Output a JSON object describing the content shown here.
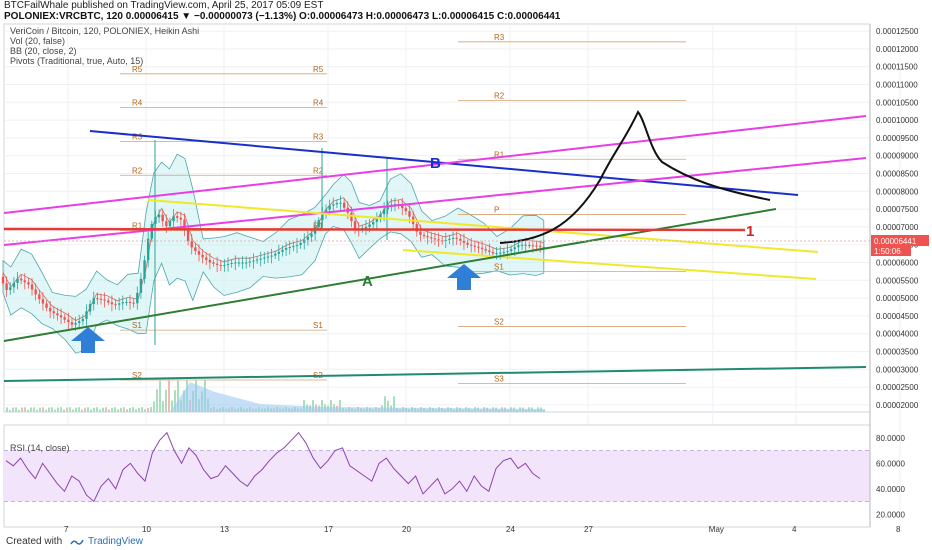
{
  "header": {
    "publisher_line": "BTCFailWhale published on TradingView.com, April 25, 2017 05:09 EST",
    "ohlc_line": "POLONIEX:VRCBTC, 120  0.00006415 ▼ −0.00000073 (−1.13%) O:0.00006473 H:0.00006473 L:0.00006415 C:0.00006441"
  },
  "legend": {
    "title": "VeriCoin / Bitcoin, 120, POLONIEX, Heikin Ashi",
    "vol": "Vol (20, false)",
    "bb": "BB (20, close, 2)",
    "pivots": "Pivots (Traditional, true, Auto, 15)",
    "rsi": "RSI (14, close)"
  },
  "annotations": {
    "label_a": "A",
    "label_b": "B",
    "label_1": "1"
  },
  "price_badge": {
    "price": "0.00006441",
    "countdown": "1:50:06"
  },
  "footer": {
    "created_with": "Created with",
    "brand": "TradingView"
  },
  "colors": {
    "up_candle": "#26a69a",
    "down_candle": "#ef5350",
    "trend_blue": "#1a2fc9",
    "trend_magenta": "#e83ee8",
    "trend_yellow": "#f0e82a",
    "trend_green": "#2e7d32",
    "resistance_red": "#e53935",
    "bb_fill": "#c8eef0",
    "pivot_line": "#d4a373",
    "rsi_line": "#8e44ad",
    "rsi_band": "#f1e4fb",
    "arrow_blue": "#2f7fd6"
  },
  "chart_data": {
    "type": "candlestick",
    "title": "VeriCoin / Bitcoin, 120, POLONIEX, Heikin Ashi",
    "x_ticks": [
      "7",
      "10",
      "13",
      "17",
      "20",
      "24",
      "27",
      "May",
      "4",
      "8"
    ],
    "y_ticks": [
      "0.00012500",
      "0.00012000",
      "0.00011500",
      "0.00011000",
      "0.00010500",
      "0.00010000",
      "0.00009500",
      "0.00009000",
      "0.00008500",
      "0.00008000",
      "0.00007500",
      "0.00007000",
      "0.00006500",
      "0.00006000",
      "0.00005500",
      "0.00005000",
      "0.00004500",
      "0.00004000",
      "0.00003500",
      "0.00003000",
      "0.00002500",
      "0.00002000"
    ],
    "y_range": [
      1.8e-05,
      0.000127
    ],
    "price_series": [
      {
        "d": 4.5,
        "p": 5.6e-05
      },
      {
        "d": 4.8,
        "p": 5.2e-05
      },
      {
        "d": 5.2,
        "p": 5.55e-05
      },
      {
        "d": 5.6,
        "p": 5.4e-05
      },
      {
        "d": 6.0,
        "p": 5e-05
      },
      {
        "d": 6.4,
        "p": 4.65e-05
      },
      {
        "d": 6.9,
        "p": 4.45e-05
      },
      {
        "d": 7.3,
        "p": 4.25e-05
      },
      {
        "d": 7.7,
        "p": 4.4e-05
      },
      {
        "d": 8.1,
        "p": 5e-05
      },
      {
        "d": 8.5,
        "p": 4.95e-05
      },
      {
        "d": 8.9,
        "p": 4.8e-05
      },
      {
        "d": 9.3,
        "p": 4.9e-05
      },
      {
        "d": 9.7,
        "p": 4.85e-05
      },
      {
        "d": 10.0,
        "p": 5.7e-05
      },
      {
        "d": 10.3,
        "p": 7e-05
      },
      {
        "d": 10.6,
        "p": 7.4e-05
      },
      {
        "d": 10.9,
        "p": 7e-05
      },
      {
        "d": 11.2,
        "p": 7.3e-05
      },
      {
        "d": 11.5,
        "p": 7.2e-05
      },
      {
        "d": 11.8,
        "p": 6.5e-05
      },
      {
        "d": 12.2,
        "p": 6.2e-05
      },
      {
        "d": 12.6,
        "p": 6e-05
      },
      {
        "d": 13.0,
        "p": 5.9e-05
      },
      {
        "d": 13.5,
        "p": 6e-05
      },
      {
        "d": 14.0,
        "p": 6e-05
      },
      {
        "d": 14.5,
        "p": 6.1e-05
      },
      {
        "d": 15.0,
        "p": 6.2e-05
      },
      {
        "d": 15.5,
        "p": 6.4e-05
      },
      {
        "d": 16.0,
        "p": 6.5e-05
      },
      {
        "d": 16.5,
        "p": 6.8e-05
      },
      {
        "d": 16.9,
        "p": 7.35e-05
      },
      {
        "d": 17.2,
        "p": 7.6e-05
      },
      {
        "d": 17.6,
        "p": 7.7e-05
      },
      {
        "d": 17.9,
        "p": 7.4e-05
      },
      {
        "d": 18.2,
        "p": 6.9e-05
      },
      {
        "d": 18.6,
        "p": 7e-05
      },
      {
        "d": 19.0,
        "p": 7.2e-05
      },
      {
        "d": 19.4,
        "p": 7.6e-05
      },
      {
        "d": 19.8,
        "p": 7.65e-05
      },
      {
        "d": 20.2,
        "p": 7.4e-05
      },
      {
        "d": 20.6,
        "p": 6.8e-05
      },
      {
        "d": 21.0,
        "p": 6.7e-05
      },
      {
        "d": 21.5,
        "p": 6.6e-05
      },
      {
        "d": 22.0,
        "p": 6.7e-05
      },
      {
        "d": 22.5,
        "p": 6.5e-05
      },
      {
        "d": 23.0,
        "p": 6.4e-05
      },
      {
        "d": 23.5,
        "p": 6.25e-05
      },
      {
        "d": 24.0,
        "p": 6.3e-05
      },
      {
        "d": 24.5,
        "p": 6.5e-05
      },
      {
        "d": 25.0,
        "p": 6.48e-05
      },
      {
        "d": 25.3,
        "p": 6.44e-05
      }
    ],
    "pivot_levels": [
      {
        "label": "R5",
        "p": 0.000113
      },
      {
        "label": "R4",
        "p": 0.0001035
      },
      {
        "label": "R3",
        "p": 9.4e-05
      },
      {
        "label": "R2",
        "p": 8.45e-05
      },
      {
        "label": "R1",
        "p": 6.9e-05
      },
      {
        "label": "S1",
        "p": 4.1e-05
      },
      {
        "label": "S2",
        "p": 2.7e-05
      },
      {
        "label": "R3",
        "p": 0.000122
      },
      {
        "label": "R2",
        "p": 0.0001055
      },
      {
        "label": "R1",
        "p": 8.9e-05
      },
      {
        "label": "P",
        "p": 7.35e-05
      },
      {
        "label": "S1",
        "p": 5.75e-05
      },
      {
        "label": "S2",
        "p": 4.2e-05
      },
      {
        "label": "S3",
        "p": 2.6e-05
      }
    ],
    "rsi_ticks": [
      "80.0000",
      "60.0000",
      "40.0000",
      "20.0000"
    ],
    "rsi_band": [
      30,
      70
    ],
    "rsi_series": [
      62,
      58,
      64,
      55,
      48,
      60,
      52,
      44,
      38,
      50,
      46,
      35,
      30,
      42,
      48,
      40,
      55,
      60,
      52,
      46,
      68,
      78,
      84,
      70,
      60,
      72,
      66,
      55,
      48,
      50,
      58,
      52,
      46,
      42,
      50,
      55,
      62,
      68,
      72,
      78,
      84,
      76,
      64,
      56,
      62,
      70,
      72,
      58,
      54,
      50,
      46,
      60,
      64,
      56,
      50,
      44,
      50,
      36,
      42,
      48,
      36,
      40,
      46,
      38,
      50,
      42,
      38,
      56,
      62,
      64,
      56,
      60,
      52,
      48
    ]
  }
}
